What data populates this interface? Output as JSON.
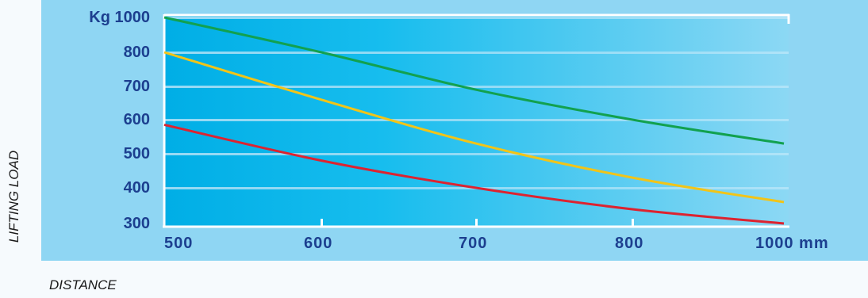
{
  "chart_data": {
    "type": "line",
    "xlabel": "DISTANCE",
    "ylabel": "LIFTING LOAD",
    "x_tick_labels": [
      "500",
      "600",
      "700",
      "800",
      "1000 mm"
    ],
    "y_tick_labels": [
      "300",
      "400",
      "500",
      "600",
      "700",
      "800",
      "Kg 1000"
    ],
    "x": [
      500,
      600,
      700,
      800,
      1000
    ],
    "series": [
      {
        "color": "#12a14f",
        "values": [
          1000,
          800,
          690,
          600,
          530
        ]
      },
      {
        "color": "#f2c418",
        "values": [
          800,
          660,
          530,
          430,
          360
        ]
      },
      {
        "color": "#dd2330",
        "values": [
          585,
          480,
          400,
          340,
          295
        ]
      }
    ],
    "grid": true
  }
}
